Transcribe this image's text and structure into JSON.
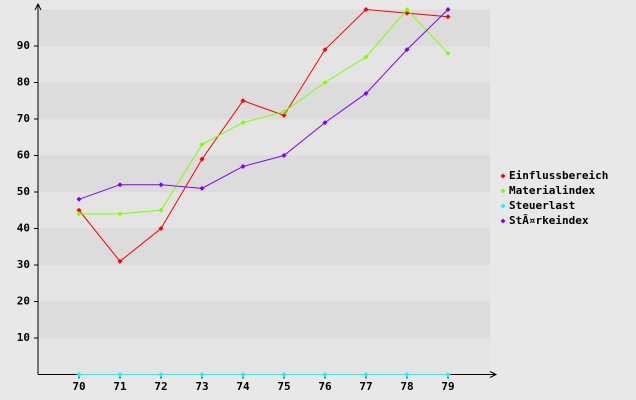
{
  "chart_data": {
    "type": "line",
    "categories": [
      "70",
      "71",
      "72",
      "73",
      "74",
      "75",
      "76",
      "77",
      "78",
      "79"
    ],
    "series": [
      {
        "name": "Einflussbereich",
        "color": "#ff0000",
        "values": [
          45,
          31,
          40,
          59,
          75,
          71,
          89,
          100,
          99,
          98
        ]
      },
      {
        "name": "Materialindex",
        "color": "#80ff00",
        "values": [
          44,
          44,
          45,
          63,
          69,
          72,
          80,
          87,
          100,
          88
        ]
      },
      {
        "name": "Steuerlast",
        "color": "#00ffff",
        "values": [
          0,
          0,
          0,
          0,
          0,
          0,
          0,
          0,
          0,
          0
        ]
      },
      {
        "name": "StÃ¤rkeindex",
        "color": "#8000ff",
        "values": [
          48,
          52,
          52,
          51,
          57,
          60,
          69,
          77,
          89,
          100
        ]
      }
    ],
    "ylim": [
      0,
      100
    ],
    "yticks": [
      10,
      20,
      30,
      40,
      50,
      60,
      70,
      80,
      90
    ],
    "grid": true,
    "legend": "right"
  }
}
